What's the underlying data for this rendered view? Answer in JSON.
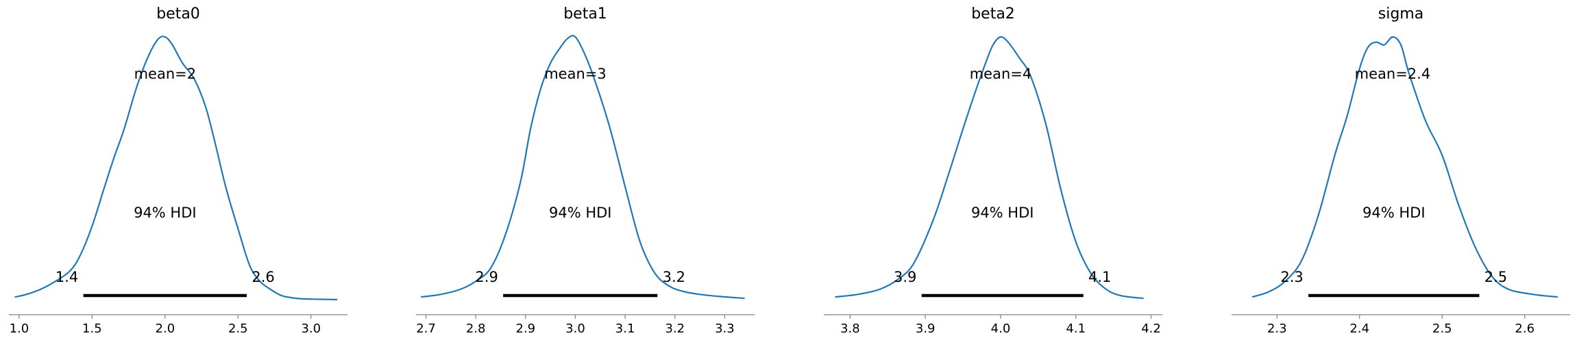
{
  "chart_data": [
    {
      "type": "area",
      "title": "beta0",
      "mean_label": "mean=2",
      "hdi_label": "94% HDI",
      "hdi": [
        1.44,
        2.56
      ],
      "hdi_tick_labels": [
        "1.4",
        "2.6"
      ],
      "xlim": [
        0.93,
        3.25
      ],
      "xticks": [
        1.0,
        1.5,
        2.0,
        2.5,
        3.0
      ],
      "xtick_labels": [
        "1.0",
        "1.5",
        "2.0",
        "2.5",
        "3.0"
      ],
      "density": {
        "x": [
          0.97,
          1.05,
          1.15,
          1.25,
          1.35,
          1.42,
          1.5,
          1.58,
          1.65,
          1.72,
          1.8,
          1.88,
          1.95,
          2.0,
          2.05,
          2.12,
          2.2,
          2.28,
          2.35,
          2.42,
          2.5,
          2.58,
          2.65,
          2.72,
          2.8,
          2.9,
          3.0,
          3.1,
          3.18
        ],
        "y": [
          0.01,
          0.02,
          0.04,
          0.07,
          0.11,
          0.17,
          0.28,
          0.42,
          0.54,
          0.65,
          0.8,
          0.92,
          0.99,
          1.0,
          0.97,
          0.9,
          0.84,
          0.73,
          0.58,
          0.42,
          0.27,
          0.13,
          0.07,
          0.04,
          0.015,
          0.005,
          0.002,
          0.001,
          0.0
        ]
      }
    },
    {
      "type": "area",
      "title": "beta1",
      "mean_label": "mean=3",
      "hdi_label": "94% HDI",
      "hdi": [
        2.855,
        3.165
      ],
      "hdi_tick_labels": [
        "2.9",
        "3.2"
      ],
      "xlim": [
        2.68,
        3.36
      ],
      "xticks": [
        2.7,
        2.8,
        2.9,
        3.0,
        3.1,
        3.2,
        3.3
      ],
      "xtick_labels": [
        "2.7",
        "2.8",
        "2.9",
        "3.0",
        "3.1",
        "3.2",
        "3.3"
      ],
      "density": {
        "x": [
          2.69,
          2.73,
          2.77,
          2.8,
          2.83,
          2.86,
          2.89,
          2.91,
          2.93,
          2.95,
          2.97,
          2.985,
          3.0,
          3.02,
          3.04,
          3.07,
          3.1,
          3.13,
          3.16,
          3.19,
          3.22,
          3.25,
          3.29,
          3.34
        ],
        "y": [
          0.01,
          0.02,
          0.04,
          0.07,
          0.12,
          0.25,
          0.45,
          0.65,
          0.8,
          0.9,
          0.96,
          0.995,
          1.0,
          0.93,
          0.83,
          0.65,
          0.43,
          0.22,
          0.1,
          0.05,
          0.03,
          0.02,
          0.012,
          0.005
        ]
      }
    },
    {
      "type": "area",
      "title": "beta2",
      "mean_label": "mean=4",
      "hdi_label": "94% HDI",
      "hdi": [
        3.895,
        4.11
      ],
      "hdi_tick_labels": [
        "3.9",
        "4.1"
      ],
      "xlim": [
        3.765,
        4.215
      ],
      "xticks": [
        3.8,
        3.9,
        4.0,
        4.1,
        4.2
      ],
      "xtick_labels": [
        "3.8",
        "3.9",
        "4.0",
        "4.1",
        "4.2"
      ],
      "density": {
        "x": [
          3.78,
          3.81,
          3.84,
          3.865,
          3.885,
          3.91,
          3.93,
          3.95,
          3.965,
          3.98,
          3.99,
          4.0,
          4.01,
          4.025,
          4.04,
          4.06,
          4.08,
          4.1,
          4.12,
          4.14,
          4.16,
          4.19
        ],
        "y": [
          0.01,
          0.02,
          0.04,
          0.08,
          0.14,
          0.3,
          0.47,
          0.65,
          0.78,
          0.9,
          0.97,
          1.0,
          0.98,
          0.92,
          0.85,
          0.67,
          0.42,
          0.22,
          0.1,
          0.04,
          0.015,
          0.005
        ]
      }
    },
    {
      "type": "area",
      "title": "sigma",
      "mean_label": "mean=2.4",
      "hdi_label": "94% HDI",
      "hdi": [
        2.338,
        2.545
      ],
      "hdi_tick_labels": [
        "2.3",
        "2.5"
      ],
      "xlim": [
        2.245,
        2.655
      ],
      "xticks": [
        2.3,
        2.4,
        2.5,
        2.6
      ],
      "xtick_labels": [
        "2.3",
        "2.4",
        "2.5",
        "2.6"
      ],
      "density": {
        "x": [
          2.27,
          2.29,
          2.31,
          2.33,
          2.35,
          2.37,
          2.385,
          2.4,
          2.41,
          2.42,
          2.43,
          2.44,
          2.45,
          2.46,
          2.48,
          2.5,
          2.52,
          2.54,
          2.56,
          2.58,
          2.61,
          2.64
        ],
        "y": [
          0.01,
          0.03,
          0.07,
          0.15,
          0.32,
          0.55,
          0.7,
          0.88,
          0.96,
          0.98,
          0.97,
          1.0,
          0.97,
          0.86,
          0.68,
          0.55,
          0.36,
          0.2,
          0.09,
          0.04,
          0.02,
          0.01
        ]
      }
    }
  ],
  "colors": {
    "line": "#1f77b4",
    "hdi": "#000000",
    "axis": "#808080"
  }
}
